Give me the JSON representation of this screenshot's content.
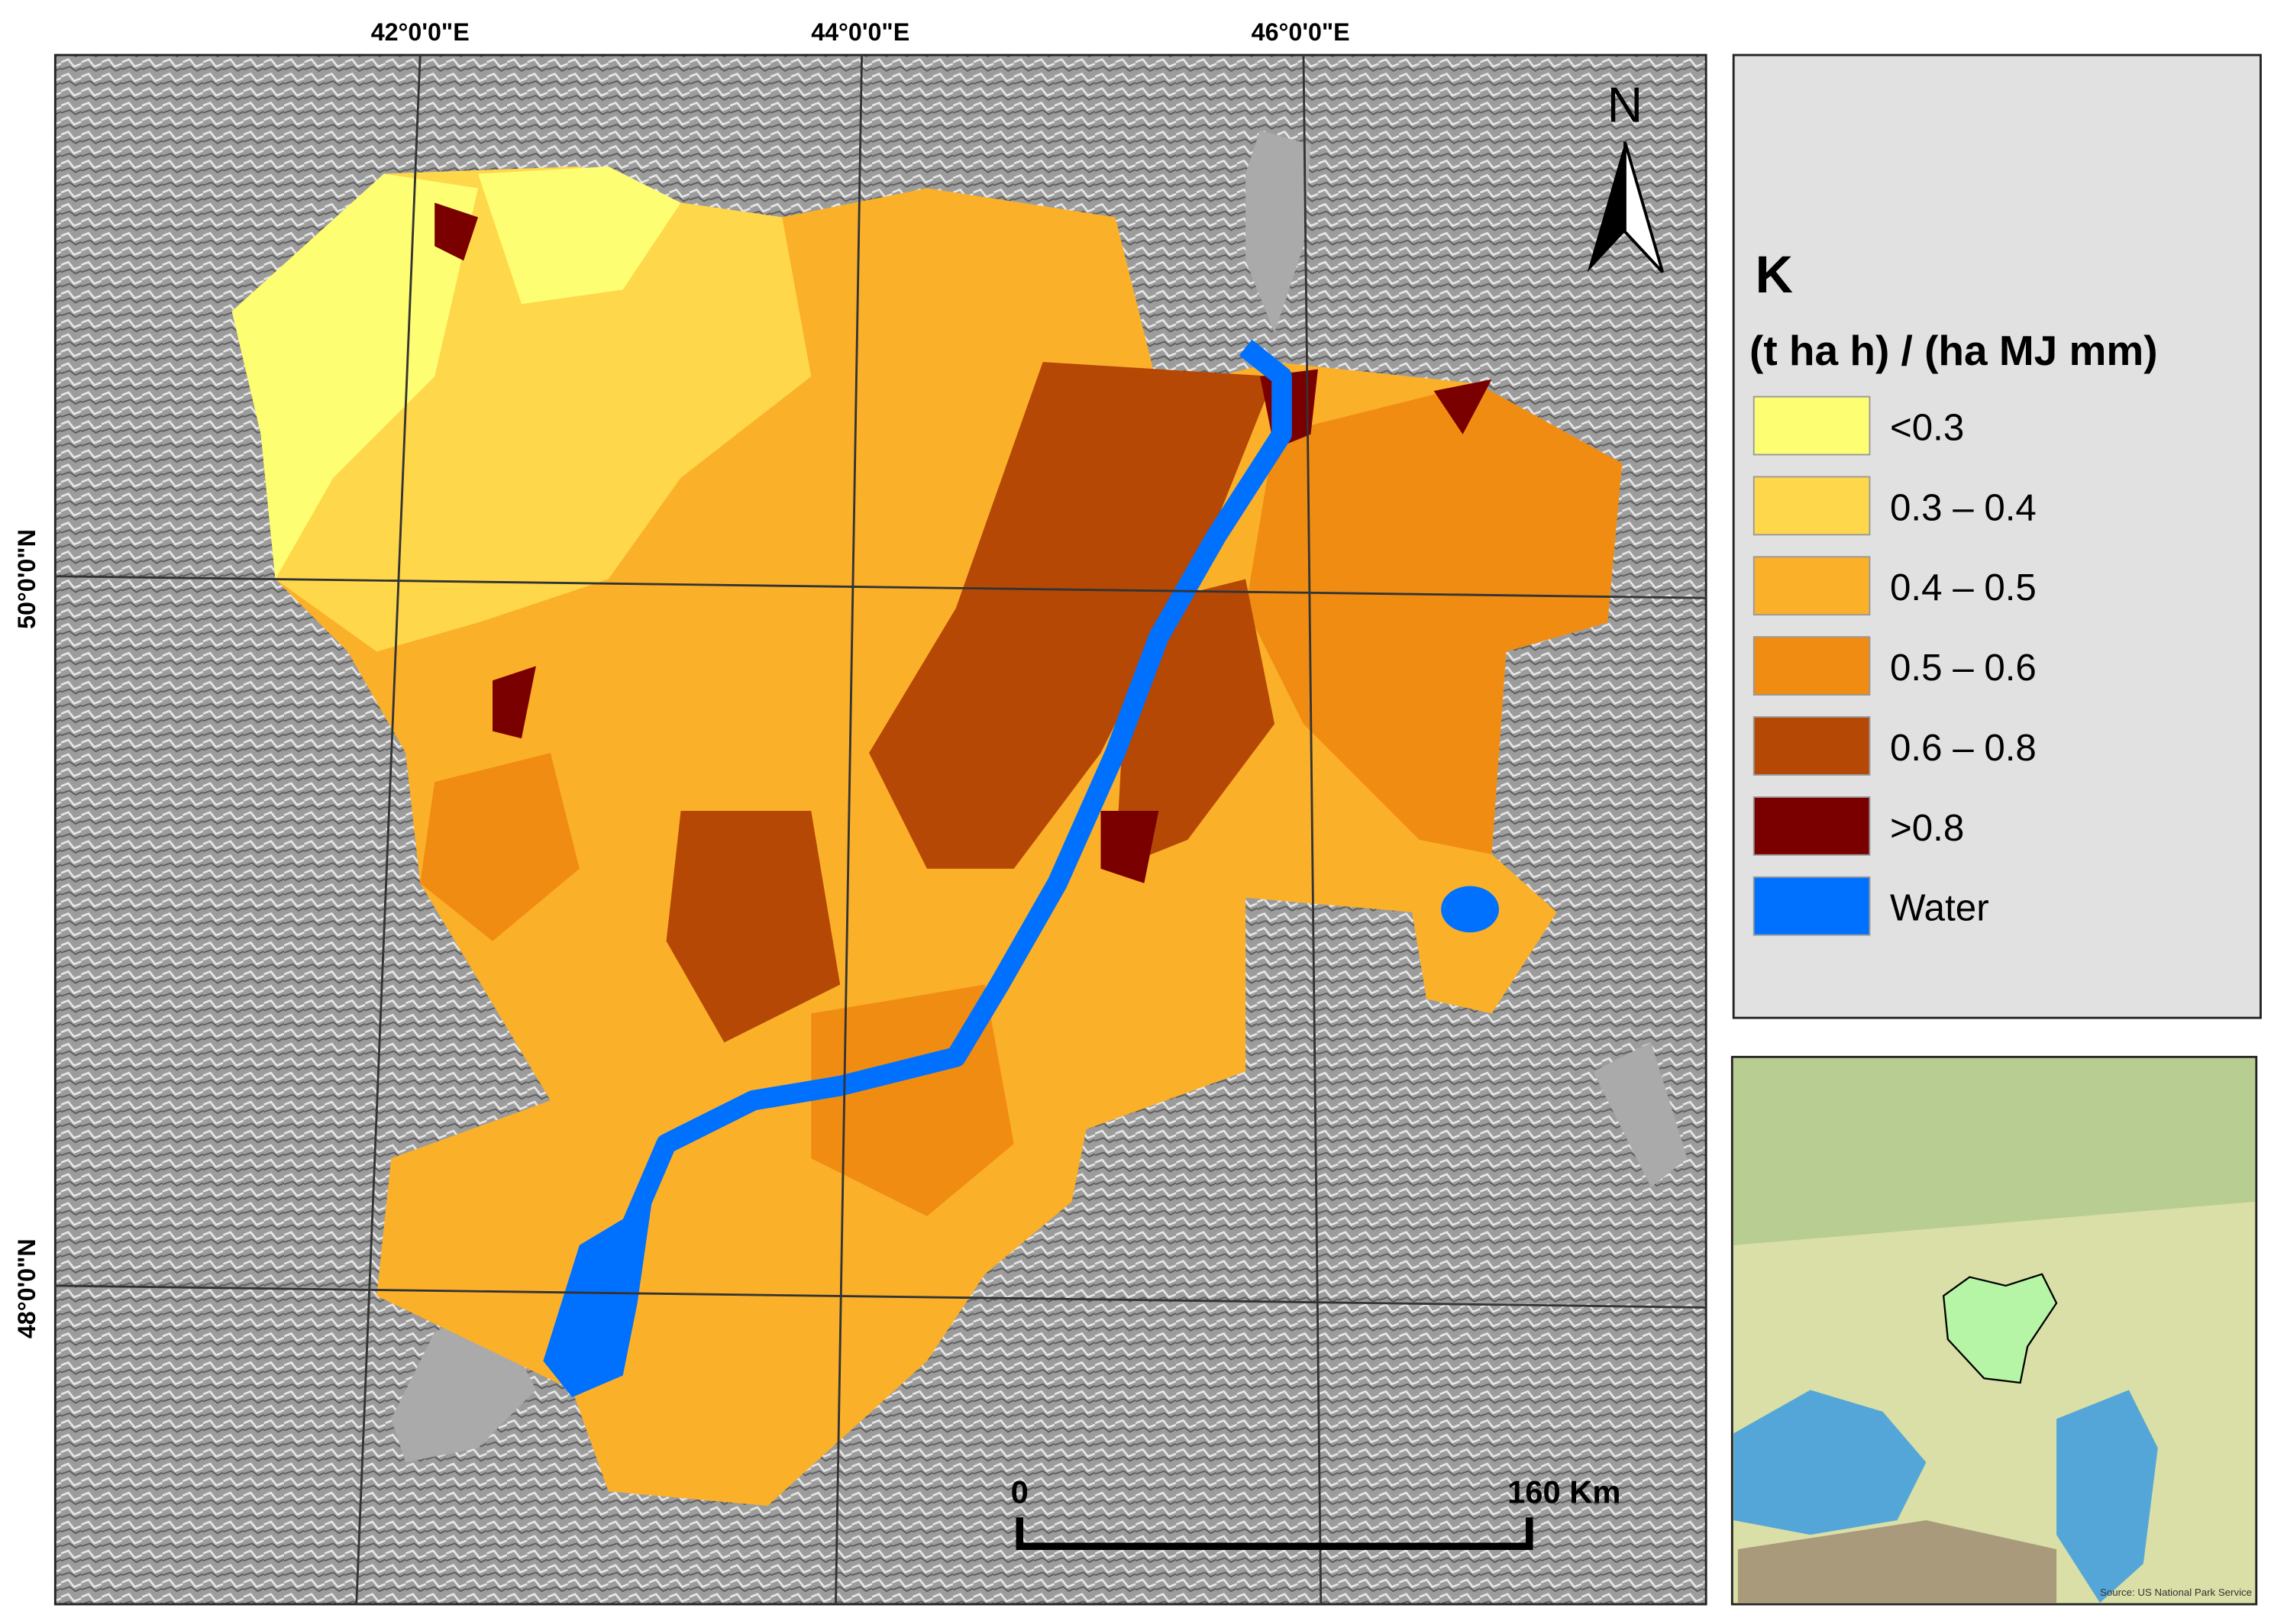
{
  "map": {
    "lon_labels": [
      "42°0'0\"E",
      "44°0'0\"E",
      "46°0'0\"E"
    ],
    "lat_labels": [
      "50°0'0\"N",
      "48°0'0\"N"
    ],
    "north": "N"
  },
  "legend": {
    "title": "K",
    "units": "(t ha h) / (ha MJ mm)",
    "items": [
      {
        "label": "<0.3",
        "color": "#fefe73"
      },
      {
        "label": "0.3 – 0.4",
        "color": "#fed84a"
      },
      {
        "label": "0.4 – 0.5",
        "color": "#fbb02a"
      },
      {
        "label": "0.5 – 0.6",
        "color": "#f08c12"
      },
      {
        "label": "0.6 – 0.8",
        "color": "#b54805"
      },
      {
        "label": ">0.8",
        "color": "#7a0000"
      },
      {
        "label": "Water",
        "color": "#0070ff"
      }
    ]
  },
  "scale_bar": {
    "start": "0",
    "end": "160 Km"
  },
  "inset": {
    "credit": "Source: US National Park Service"
  }
}
